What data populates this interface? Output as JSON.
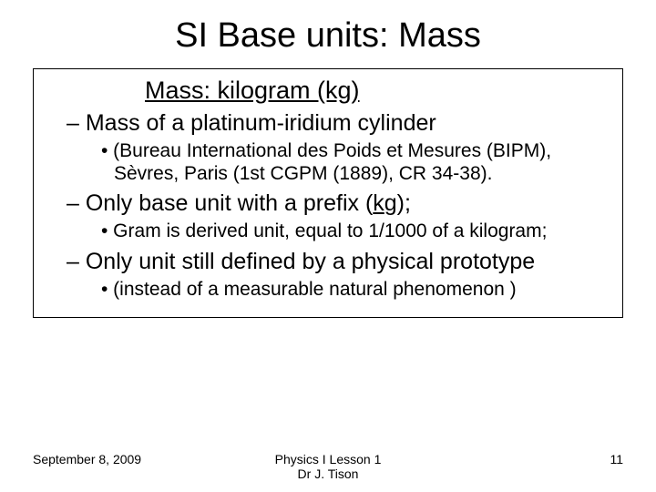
{
  "title": "SI Base units: Mass",
  "subtitle": "Mass: kilogram (kg)",
  "points": {
    "p1": "– Mass of a platinum-iridium cylinder",
    "p1a": "• (Bureau International des Poids et Mesures (BIPM), Sèvres, Paris (1st CGPM (1889), CR 34-38).",
    "p2_pre": "– Only base unit with a prefix (",
    "p2_u": "k",
    "p2_post": "g);",
    "p2a": "• Gram is derived unit, equal to 1/1000 of a kilogram;",
    "p3": "– Only unit still defined by a physical prototype",
    "p3a": "• (instead of a measurable natural phenomenon )"
  },
  "footer": {
    "date": "September 8, 2009",
    "center1": "Physics I Lesson 1",
    "center2": "Dr J. Tison",
    "page": "11"
  },
  "style": {
    "background": "#ffffff",
    "text_color": "#000000",
    "title_fontsize": 38,
    "subtitle_fontsize": 27,
    "level1_fontsize": 25,
    "level2_fontsize": 21,
    "footer_fontsize": 14,
    "border_color": "#000000"
  }
}
